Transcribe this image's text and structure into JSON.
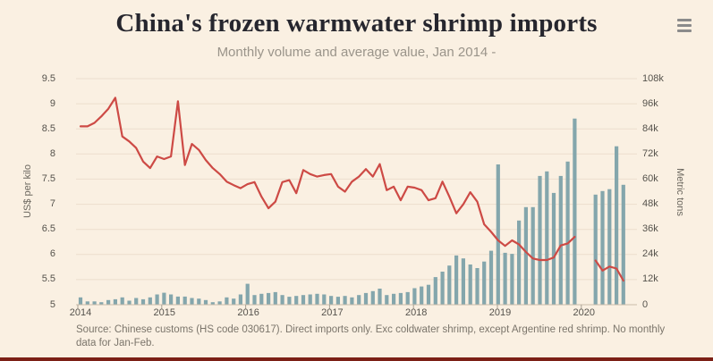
{
  "header": {
    "title": "China's frozen warmwater shrimp imports",
    "subtitle": "Monthly volume and average value, Jan 2014 -"
  },
  "menu": {
    "icon": "hamburger-icon"
  },
  "footer": {
    "source_text": "Source: Chinese customs (HS code 030617). Direct imports only. Exc coldwater shrimp, except Argentine red shrimp. No monthly data for Jan-Feb."
  },
  "colors": {
    "background": "#faf0e2",
    "title": "#26262e",
    "subtitle": "#9a948a",
    "bars": "#84a6ac",
    "line": "#cd4a45",
    "gridline": "#ecdecd",
    "axis_line": "#c9bcab",
    "tick_label": "#55524c",
    "footer_text": "#7b756b",
    "bottom_accent": "#7c2016",
    "menu_icon": "#8b8b8b"
  },
  "chart_data": {
    "type": "mixed-bar-line",
    "title": "China's frozen warmwater shrimp imports",
    "subtitle": "Monthly volume and average value, Jan 2014 -",
    "x_start": "2014-01",
    "x_end": "2020-07",
    "x_frequency": "monthly",
    "grid": "horizontal-only",
    "legend": "none",
    "x_axis": {
      "tick_labels": [
        "2014",
        "2015",
        "2016",
        "2017",
        "2018",
        "2019",
        "2020"
      ]
    },
    "left_axis": {
      "title": "US$ per kilo",
      "min": 5,
      "max": 9.5,
      "step": 0.5,
      "tick_labels": [
        "5",
        "5.5",
        "6",
        "6.5",
        "7",
        "7.5",
        "8",
        "8.5",
        "9",
        "9.5"
      ]
    },
    "right_axis": {
      "title": "Metric tons",
      "min": 0,
      "max": 108000,
      "step": 12000,
      "tick_labels": [
        "0",
        "12k",
        "24k",
        "36k",
        "48k",
        "60k",
        "72k",
        "84k",
        "96k",
        "108k"
      ]
    },
    "series": [
      {
        "name": "Monthly import volume",
        "type": "column",
        "axis": "right",
        "unit": "metric tons",
        "color": "#84a6ac",
        "values": [
          3500,
          1600,
          1600,
          1200,
          2200,
          2600,
          3500,
          1900,
          3200,
          2600,
          3500,
          4900,
          5700,
          4900,
          3900,
          3900,
          3200,
          2900,
          2200,
          1200,
          1600,
          3500,
          2900,
          4900,
          10000,
          4600,
          5200,
          5600,
          6000,
          4600,
          3800,
          4200,
          4600,
          4900,
          5200,
          4900,
          4200,
          3800,
          4200,
          3500,
          4600,
          5600,
          6500,
          7700,
          4600,
          5200,
          5600,
          6000,
          7900,
          8700,
          9500,
          13200,
          15800,
          18700,
          23500,
          22100,
          19200,
          17500,
          20600,
          25800,
          67000,
          24800,
          24300,
          40200,
          46600,
          46600,
          61500,
          63700,
          53400,
          61500,
          68400,
          88900,
          null,
          null,
          52600,
          54300,
          55200,
          75700,
          57300
        ]
      },
      {
        "name": "Average value",
        "type": "line",
        "axis": "left",
        "unit": "US$ per kilo",
        "color": "#cd4a45",
        "values": [
          8.55,
          8.55,
          8.62,
          8.75,
          8.9,
          9.12,
          8.35,
          8.25,
          8.12,
          7.85,
          7.72,
          7.95,
          7.9,
          7.95,
          9.05,
          7.78,
          8.2,
          8.08,
          7.88,
          7.72,
          7.6,
          7.45,
          7.38,
          7.32,
          7.4,
          7.44,
          7.15,
          6.92,
          7.05,
          7.44,
          7.48,
          7.22,
          7.68,
          7.6,
          7.55,
          7.58,
          7.6,
          7.35,
          7.25,
          7.45,
          7.55,
          7.7,
          7.55,
          7.8,
          7.28,
          7.35,
          7.08,
          7.35,
          7.33,
          7.28,
          7.08,
          7.12,
          7.45,
          7.15,
          6.82,
          7.0,
          7.24,
          7.05,
          6.6,
          6.45,
          6.28,
          6.17,
          6.28,
          6.2,
          6.05,
          5.92,
          5.89,
          5.89,
          5.94,
          6.18,
          6.22,
          6.35,
          null,
          null,
          5.88,
          5.68,
          5.76,
          5.72,
          5.48
        ]
      }
    ],
    "notes": "Gap in both series at Jan-Feb 2020"
  }
}
